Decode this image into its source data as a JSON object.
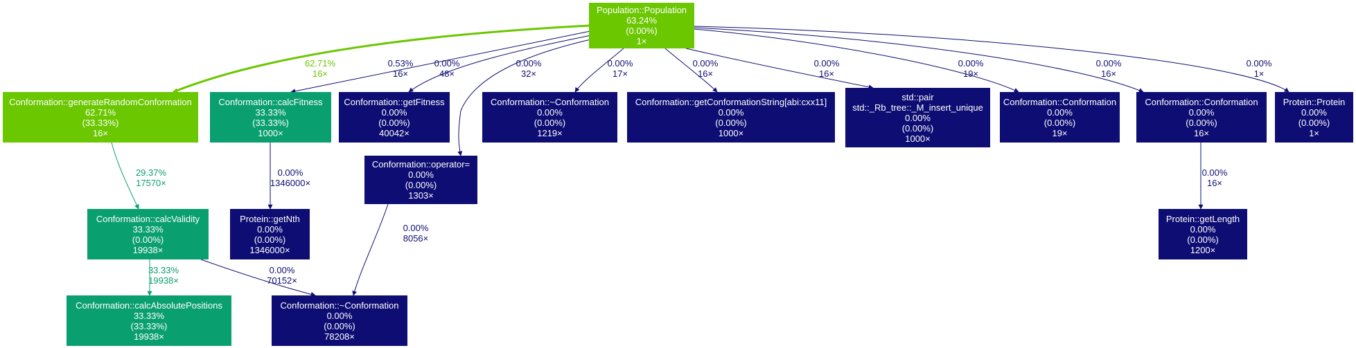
{
  "colors": {
    "hot": "#6ac700",
    "warm": "#0a9f6e",
    "cold": "#0d0d73",
    "edge_text_cold": "#0d0d73",
    "edge_text_hot": "#6ac700",
    "edge_text_warm": "#0a9f6e",
    "node_text": "#ffffff"
  },
  "nodes": [
    {
      "id": "n0",
      "name": "Population::Population",
      "total": "63.24%",
      "self": "(0.00%)",
      "calls": "1×",
      "heat": "hot"
    },
    {
      "id": "n1",
      "name": "Conformation::generateRandomConformation",
      "total": "62.71%",
      "self": "(33.33%)",
      "calls": "16×",
      "heat": "hot"
    },
    {
      "id": "n2",
      "name": "Conformation::calcFitness",
      "total": "33.33%",
      "self": "(33.33%)",
      "calls": "1000×",
      "heat": "warm"
    },
    {
      "id": "n3",
      "name": "Conformation::getFitness",
      "total": "0.00%",
      "self": "(0.00%)",
      "calls": "40042×",
      "heat": "cold"
    },
    {
      "id": "n4",
      "name": "Conformation::~Conformation",
      "total": "0.00%",
      "self": "(0.00%)",
      "calls": "1219×",
      "heat": "cold"
    },
    {
      "id": "n5",
      "name": "Conformation::getConformationString[abi:cxx11]",
      "total": "0.00%",
      "self": "(0.00%)",
      "calls": "1000×",
      "heat": "cold"
    },
    {
      "id": "n6",
      "name": "std::pair",
      "name2": "std::_Rb_tree::_M_insert_unique",
      "total": "0.00%",
      "self": "(0.00%)",
      "calls": "1000×",
      "heat": "cold"
    },
    {
      "id": "n7",
      "name": "Conformation::Conformation",
      "total": "0.00%",
      "self": "(0.00%)",
      "calls": "19×",
      "heat": "cold"
    },
    {
      "id": "n8",
      "name": "Conformation::Conformation",
      "total": "0.00%",
      "self": "(0.00%)",
      "calls": "16×",
      "heat": "cold"
    },
    {
      "id": "n9",
      "name": "Protein::Protein",
      "total": "0.00%",
      "self": "(0.00%)",
      "calls": "1×",
      "heat": "cold"
    },
    {
      "id": "n10",
      "name": "Conformation::operator=",
      "total": "0.00%",
      "self": "(0.00%)",
      "calls": "1303×",
      "heat": "cold"
    },
    {
      "id": "n11",
      "name": "Conformation::calcValidity",
      "total": "33.33%",
      "self": "(0.00%)",
      "calls": "19938×",
      "heat": "warm"
    },
    {
      "id": "n12",
      "name": "Protein::getNth",
      "total": "0.00%",
      "self": "(0.00%)",
      "calls": "1346000×",
      "heat": "cold"
    },
    {
      "id": "n13",
      "name": "Protein::getLength",
      "total": "0.00%",
      "self": "(0.00%)",
      "calls": "1200×",
      "heat": "cold"
    },
    {
      "id": "n14",
      "name": "Conformation::calcAbsolutePositions",
      "total": "33.33%",
      "self": "(33.33%)",
      "calls": "19938×",
      "heat": "warm"
    },
    {
      "id": "n15",
      "name": "Conformation::~Conformation",
      "total": "0.00%",
      "self": "(0.00%)",
      "calls": "78208×",
      "heat": "cold"
    }
  ],
  "edges": [
    {
      "from": "n0",
      "to": "n1",
      "pct": "62.71%",
      "calls": "16×",
      "heat": "hot"
    },
    {
      "from": "n0",
      "to": "n2",
      "pct": "0.53%",
      "calls": "16×",
      "heat": "cold"
    },
    {
      "from": "n0",
      "to": "n3",
      "pct": "0.00%",
      "calls": "48×",
      "heat": "cold"
    },
    {
      "from": "n0",
      "to": "n10",
      "pct": "0.00%",
      "calls": "32×",
      "heat": "cold"
    },
    {
      "from": "n0",
      "to": "n4",
      "pct": "0.00%",
      "calls": "17×",
      "heat": "cold"
    },
    {
      "from": "n0",
      "to": "n5",
      "pct": "0.00%",
      "calls": "16×",
      "heat": "cold"
    },
    {
      "from": "n0",
      "to": "n6",
      "pct": "0.00%",
      "calls": "16×",
      "heat": "cold"
    },
    {
      "from": "n0",
      "to": "n7",
      "pct": "0.00%",
      "calls": "19×",
      "heat": "cold"
    },
    {
      "from": "n0",
      "to": "n8",
      "pct": "0.00%",
      "calls": "16×",
      "heat": "cold"
    },
    {
      "from": "n0",
      "to": "n9",
      "pct": "0.00%",
      "calls": "1×",
      "heat": "cold"
    },
    {
      "from": "n1",
      "to": "n11",
      "pct": "29.37%",
      "calls": "17570×",
      "heat": "warm"
    },
    {
      "from": "n2",
      "to": "n12",
      "pct": "0.00%",
      "calls": "1346000×",
      "heat": "cold"
    },
    {
      "from": "n8",
      "to": "n13",
      "pct": "0.00%",
      "calls": "16×",
      "heat": "cold"
    },
    {
      "from": "n11",
      "to": "n14",
      "pct": "33.33%",
      "calls": "19938×",
      "heat": "warm"
    },
    {
      "from": "n11",
      "to": "n15",
      "pct": "0.00%",
      "calls": "70152×",
      "heat": "cold"
    },
    {
      "from": "n10",
      "to": "n15",
      "pct": "0.00%",
      "calls": "8056×",
      "heat": "cold"
    }
  ]
}
